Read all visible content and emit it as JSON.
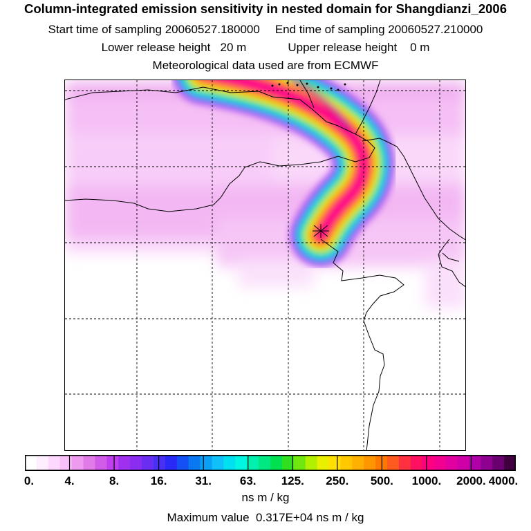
{
  "header": {
    "title": "Column-integrated emission sensitivity in nested domain for Shangdianzi_2006",
    "start_label": "Start time of sampling 20060527.180000",
    "end_label": "End time of sampling 20060527.210000",
    "lower_label": "Lower release height   20 m",
    "upper_label": "Upper release height    0 m",
    "met_label": "Meteorological data used are from ECMWF"
  },
  "chart_data": {
    "type": "heatmap",
    "title": "Column-integrated emission sensitivity in nested domain for Shangdianzi_2006",
    "units": "ns m / kg",
    "max_value_text": "Maximum value  0.317E+04 ns m / kg",
    "max_value": 3170,
    "colorbar_ticks": [
      "0.",
      "4.",
      "8.",
      "16.",
      "31.",
      "63.",
      "125.",
      "250.",
      "500.",
      "1000.",
      "2000.",
      "4000."
    ],
    "colorbar_tick_values": [
      0,
      4,
      8,
      16,
      31,
      63,
      125,
      250,
      500,
      1000,
      2000,
      4000
    ],
    "colorbar_colors": [
      "#ffffff",
      "#ffeeff",
      "#ffd8ff",
      "#f8bff8",
      "#ee9aee",
      "#e07be8",
      "#d05ce8",
      "#c040f0",
      "#a030f0",
      "#8a2df0",
      "#6a2ef2",
      "#4a30f5",
      "#2a2af8",
      "#1450f5",
      "#0a78f0",
      "#0aa0f5",
      "#10c0f8",
      "#00e0f0",
      "#00f6e0",
      "#00f0b0",
      "#00e882",
      "#00e050",
      "#30e020",
      "#70e810",
      "#b0f000",
      "#e8f000",
      "#ffe000",
      "#ffc800",
      "#ffb000",
      "#ff9600",
      "#ff7800",
      "#ff5a20",
      "#ff3040",
      "#ff1060",
      "#ff0080",
      "#f40090",
      "#e200a0",
      "#d000a8",
      "#b000a8",
      "#8e0090",
      "#6a0070",
      "#400040"
    ],
    "source_marker": "Shangdianzi receptor",
    "grid": true
  }
}
